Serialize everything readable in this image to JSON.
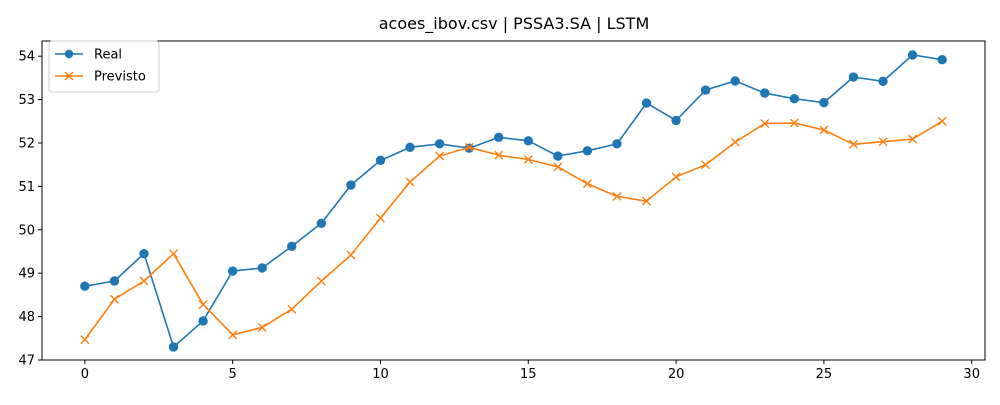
{
  "chart_data": {
    "type": "line",
    "title": "acoes_ibov.csv | PSSA3.SA | LSTM",
    "xlabel": "",
    "ylabel": "",
    "xlim": [
      -1.45,
      30.45
    ],
    "ylim": [
      47.0,
      54.35
    ],
    "x_ticks": [
      0,
      5,
      10,
      15,
      20,
      25,
      30
    ],
    "y_ticks": [
      47,
      48,
      49,
      50,
      51,
      52,
      53,
      54
    ],
    "x_tick_labels": [
      "0",
      "5",
      "10",
      "15",
      "20",
      "25",
      "30"
    ],
    "y_tick_labels": [
      "47",
      "48",
      "49",
      "50",
      "51",
      "52",
      "53",
      "54"
    ],
    "grid": false,
    "legend_position": "top-left",
    "x": [
      0,
      1,
      2,
      3,
      4,
      5,
      6,
      7,
      8,
      9,
      10,
      11,
      12,
      13,
      14,
      15,
      16,
      17,
      18,
      19,
      20,
      21,
      22,
      23,
      24,
      25,
      26,
      27,
      28,
      29
    ],
    "series": [
      {
        "name": "Real",
        "color": "#1f77b4",
        "marker": "circle",
        "values": [
          48.7,
          48.82,
          49.45,
          47.3,
          47.9,
          49.05,
          49.12,
          49.62,
          50.15,
          51.03,
          51.6,
          51.9,
          51.98,
          51.88,
          52.13,
          52.05,
          51.7,
          51.82,
          51.98,
          52.92,
          52.52,
          53.22,
          53.43,
          53.15,
          53.02,
          52.93,
          53.52,
          53.42,
          54.03,
          53.92
        ]
      },
      {
        "name": "Previsto",
        "color": "#ff7f0e",
        "marker": "x",
        "values": [
          47.47,
          48.4,
          48.82,
          49.45,
          48.28,
          47.58,
          47.75,
          48.17,
          48.82,
          49.42,
          50.27,
          51.1,
          51.7,
          51.9,
          51.72,
          51.62,
          51.45,
          51.06,
          50.77,
          50.66,
          51.22,
          51.5,
          52.02,
          52.45,
          52.46,
          52.3,
          51.97,
          52.03,
          52.09,
          52.5
        ]
      }
    ]
  }
}
